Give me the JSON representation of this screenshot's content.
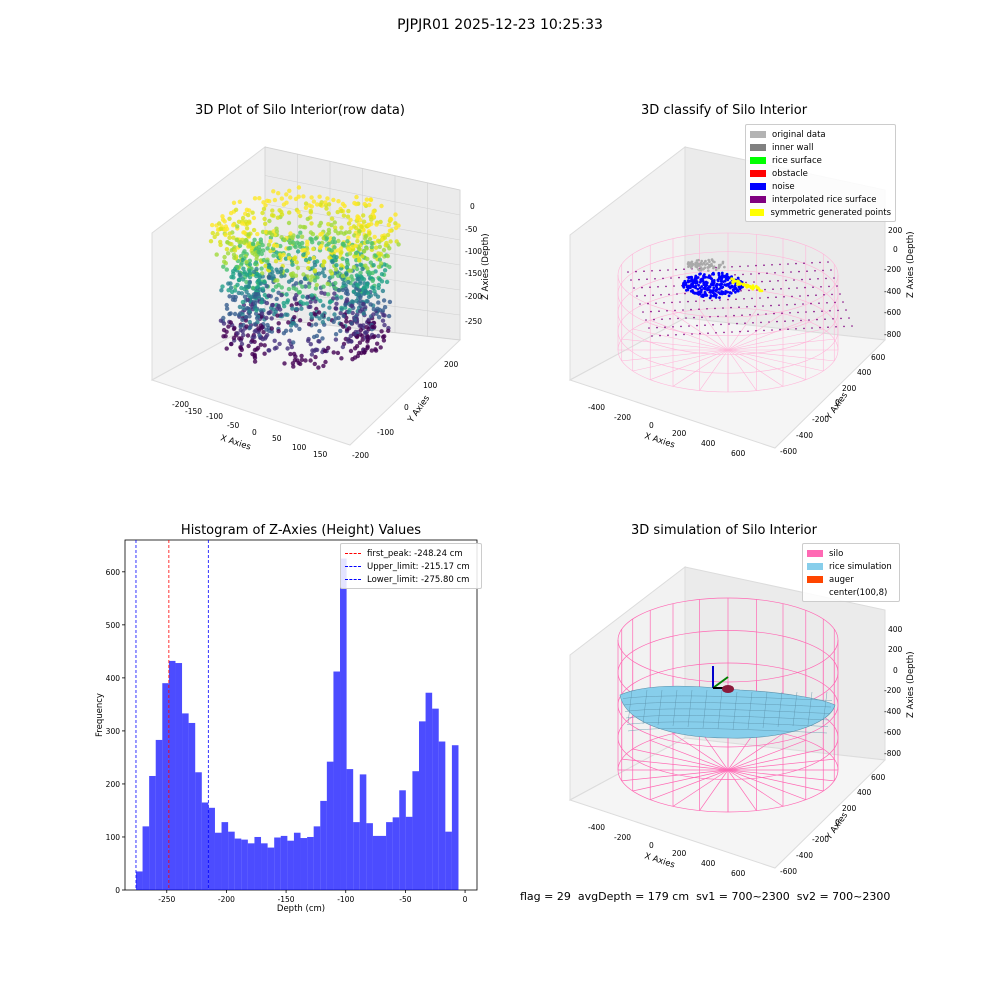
{
  "suptitle": "PJPJR01 2025-12-23 10:25:33",
  "status_line": {
    "flag": "flag = 29",
    "avg_depth": "avgDepth = 179 cm",
    "sv1": "sv1 = 700~2300",
    "sv2": "sv2 = 700~2300"
  },
  "chart_data": [
    {
      "type": "scatter",
      "title": "3D Plot of Silo Interior(row data)",
      "xlabel": "X Axies",
      "ylabel": "Y Axies",
      "zlabel": "Z Axies (Depth)",
      "xticks": [
        -200,
        -150,
        -100,
        -50,
        0,
        50,
        100,
        150
      ],
      "yticks": [
        -200,
        -100,
        0,
        100,
        200
      ],
      "zticks": [
        0,
        -50,
        -100,
        -150,
        -200,
        -250
      ],
      "colormap": "viridis"
    },
    {
      "type": "scatter",
      "title": "3D classify of Silo Interior",
      "xlabel": "X Axies",
      "ylabel": "Y Axies",
      "zlabel": "Z Axies (Depth)",
      "xticks": [
        -400,
        -200,
        0,
        200,
        400,
        600
      ],
      "yticks": [
        -600,
        -400,
        -200,
        0,
        200,
        400,
        600
      ],
      "zticks": [
        200,
        0,
        -200,
        -400,
        -600,
        -800
      ],
      "legend": [
        {
          "label": "original data",
          "color": "#b3b3b3"
        },
        {
          "label": "inner wall",
          "color": "#808080"
        },
        {
          "label": "rice surface",
          "color": "#00ff00"
        },
        {
          "label": "obstacle",
          "color": "#ff0000"
        },
        {
          "label": "noise",
          "color": "#0000ff"
        },
        {
          "label": "interpolated rice surface",
          "color": "#800080"
        },
        {
          "label": "symmetric generated points",
          "color": "#ffff00"
        }
      ]
    },
    {
      "type": "bar",
      "title": "Histogram of Z-Axies (Height) Values",
      "xlabel": "Depth (cm)",
      "ylabel": "Frequency",
      "xlim": [
        -285,
        10
      ],
      "ylim": [
        0,
        660
      ],
      "xticks": [
        -250,
        -200,
        -150,
        -100,
        -50,
        0
      ],
      "yticks": [
        0,
        100,
        200,
        300,
        400,
        500,
        600
      ],
      "bar_color": "#0000ff",
      "bin_start": -275.8,
      "bin_width": 5.516,
      "values": [
        35,
        120,
        215,
        283,
        390,
        432,
        428,
        333,
        315,
        222,
        165,
        155,
        108,
        128,
        110,
        97,
        95,
        88,
        100,
        88,
        80,
        99,
        102,
        93,
        108,
        98,
        100,
        120,
        168,
        242,
        412,
        625,
        228,
        128,
        218,
        126,
        102,
        102,
        128,
        137,
        188,
        138,
        224,
        318,
        372,
        342,
        280,
        110,
        273
      ],
      "vlines": [
        {
          "label": "first_peak: -248.24 cm",
          "x": -248.24,
          "color": "#ff0000"
        },
        {
          "label": "Upper_limit: -215.17 cm",
          "x": -215.17,
          "color": "#0000ff"
        },
        {
          "label": "Lower_limit: -275.80 cm",
          "x": -275.8,
          "color": "#0000ff"
        }
      ]
    },
    {
      "type": "scatter",
      "title": "3D simulation of Silo Interior",
      "xlabel": "X Axies",
      "ylabel": "Y Axies",
      "zlabel": "Z Axies (Depth)",
      "xticks": [
        -400,
        -200,
        0,
        200,
        400,
        600
      ],
      "yticks": [
        -600,
        -400,
        -200,
        0,
        200,
        400,
        600
      ],
      "zticks": [
        400,
        200,
        0,
        -200,
        -400,
        -600,
        -800
      ],
      "legend": [
        {
          "label": "silo",
          "color": "#ff69b4"
        },
        {
          "label": "rice simulation",
          "color": "#87ceeb"
        },
        {
          "label": "auger",
          "color": "#ff4500"
        },
        {
          "label": "center(100,8)",
          "color": ""
        }
      ]
    }
  ]
}
